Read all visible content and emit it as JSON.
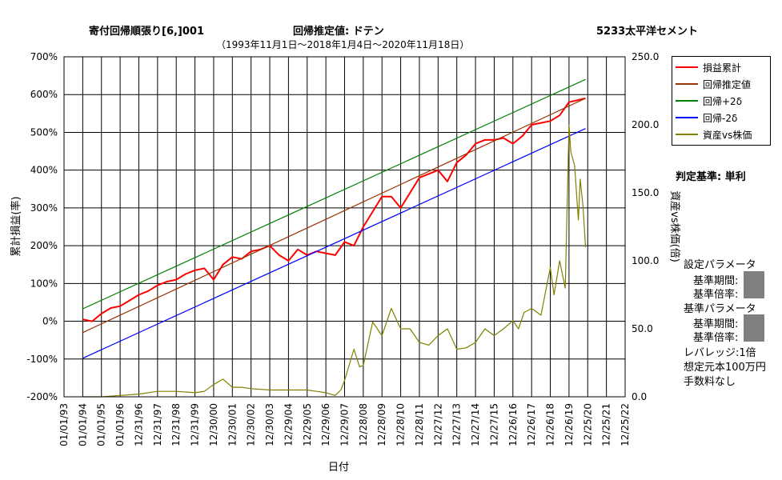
{
  "header": {
    "title": "寄付回帰順張り[6,]001",
    "estimate_label": "回帰推定値: ドテン",
    "stock": "5233太平洋セメント",
    "period": "（1993年11月1日～2018年1月4日～2020年11月18日）"
  },
  "side_panel": {
    "judgement": "判定基準: 単利",
    "set_params": "設定パラメータ",
    "base_period_1": "基準期間:",
    "base_mult_1": "基準倍率:",
    "base_params": "基準パラメータ",
    "base_period_2": "基準期間:",
    "base_mult_2": "基準倍率:",
    "leverage": "レバレッジ:1倍",
    "capital": "想定元本100万円",
    "fee": "手数料なし"
  },
  "chart_data": {
    "type": "line",
    "xlabel": "日付",
    "ylabel": "累計損益(率)",
    "y2label": "資産vs株価(倍)",
    "x_ticks": [
      "01/01/93",
      "01/01/94",
      "01/01/95",
      "01/01/96",
      "12/31/96",
      "12/31/97",
      "12/31/98",
      "12/31/99",
      "12/30/00",
      "12/30/01",
      "12/30/02",
      "12/30/03",
      "12/29/04",
      "12/29/05",
      "12/29/06",
      "12/29/07",
      "12/28/08",
      "12/28/09",
      "12/28/10",
      "12/28/11",
      "12/27/12",
      "12/27/13",
      "12/27/14",
      "12/27/15",
      "12/26/16",
      "12/26/17",
      "12/26/18",
      "12/26/19",
      "12/25/20",
      "12/25/21",
      "12/25/22"
    ],
    "y_ticks": [
      "700%",
      "600%",
      "500%",
      "400%",
      "300%",
      "200%",
      "100%",
      "0%",
      "-100%",
      "-200%"
    ],
    "y2_ticks": [
      "250.0",
      "200.0",
      "150.0",
      "100.0",
      "50.0",
      "0.0"
    ],
    "ylim": [
      -200,
      700
    ],
    "y2lim": [
      0,
      250
    ],
    "xlim": [
      1993.0,
      2023.0
    ],
    "grid": true,
    "legend_position": "top-right",
    "series": [
      {
        "name": "損益累計",
        "color": "#ff0000",
        "axis": "left",
        "x": [
          1994.0,
          1994.5,
          1995.0,
          1995.5,
          1996.0,
          1996.5,
          1997.0,
          1997.5,
          1998.0,
          1998.5,
          1999.0,
          1999.5,
          2000.0,
          2000.5,
          2001.0,
          2001.5,
          2002.0,
          2002.5,
          2003.0,
          2003.5,
          2004.0,
          2004.5,
          2005.0,
          2005.5,
          2006.0,
          2006.5,
          2007.0,
          2007.5,
          2008.0,
          2008.5,
          2009.0,
          2009.5,
          2010.0,
          2010.5,
          2011.0,
          2011.5,
          2012.0,
          2012.5,
          2013.0,
          2013.5,
          2014.0,
          2014.5,
          2015.0,
          2015.5,
          2016.0,
          2016.5,
          2017.0,
          2017.5,
          2018.0,
          2018.5,
          2019.0,
          2019.5,
          2020.0,
          2020.88
        ],
        "y": [
          5,
          0,
          20,
          35,
          40,
          55,
          70,
          80,
          95,
          105,
          110,
          125,
          135,
          140,
          110,
          150,
          170,
          165,
          185,
          190,
          200,
          175,
          160,
          190,
          175,
          185,
          180,
          175,
          210,
          200,
          250,
          290,
          330,
          330,
          300,
          340,
          380,
          390,
          400,
          370,
          420,
          440,
          470,
          480,
          480,
          485,
          470,
          490,
          520,
          525,
          530,
          545,
          580,
          590
        ]
      },
      {
        "name": "回帰推定値",
        "color": "#993300",
        "axis": "left",
        "x": [
          1994.0,
          2020.88
        ],
        "y": [
          -30,
          590
        ]
      },
      {
        "name": "回帰+2δ",
        "color": "#008000",
        "axis": "left",
        "x": [
          1994.0,
          2020.88
        ],
        "y": [
          33,
          640
        ]
      },
      {
        "name": "回帰-2δ",
        "color": "#0000ff",
        "axis": "left",
        "x": [
          1994.0,
          2020.88
        ],
        "y": [
          -98,
          510
        ]
      },
      {
        "name": "資産vs株価",
        "color": "#808000",
        "axis": "right",
        "x": [
          1994.0,
          1995.0,
          1996.0,
          1997.0,
          1998.0,
          1999.0,
          2000.0,
          2000.5,
          2001.0,
          2001.5,
          2002.0,
          2002.5,
          2003.0,
          2004.0,
          2005.0,
          2006.0,
          2006.5,
          2007.0,
          2007.5,
          2007.8,
          2008.0,
          2008.5,
          2008.8,
          2009.0,
          2009.5,
          2010.0,
          2010.5,
          2011.0,
          2011.5,
          2012.0,
          2012.5,
          2013.0,
          2013.5,
          2014.0,
          2014.5,
          2015.0,
          2015.5,
          2016.0,
          2016.5,
          2017.0,
          2017.3,
          2017.6,
          2018.0,
          2018.5,
          2019.0,
          2019.2,
          2019.5,
          2019.8,
          2020.0,
          2020.1,
          2020.3,
          2020.5,
          2020.6,
          2020.75,
          2020.88
        ],
        "y": [
          0,
          0,
          1,
          2,
          4,
          4,
          3,
          4,
          9,
          13,
          7,
          7,
          6,
          5,
          5,
          5,
          4,
          3,
          1,
          5,
          12,
          35,
          22,
          23,
          55,
          45,
          65,
          50,
          50,
          40,
          38,
          45,
          50,
          35,
          36,
          40,
          50,
          45,
          50,
          56,
          50,
          62,
          65,
          60,
          95,
          75,
          100,
          80,
          200,
          180,
          170,
          130,
          160,
          140,
          110
        ]
      }
    ]
  }
}
